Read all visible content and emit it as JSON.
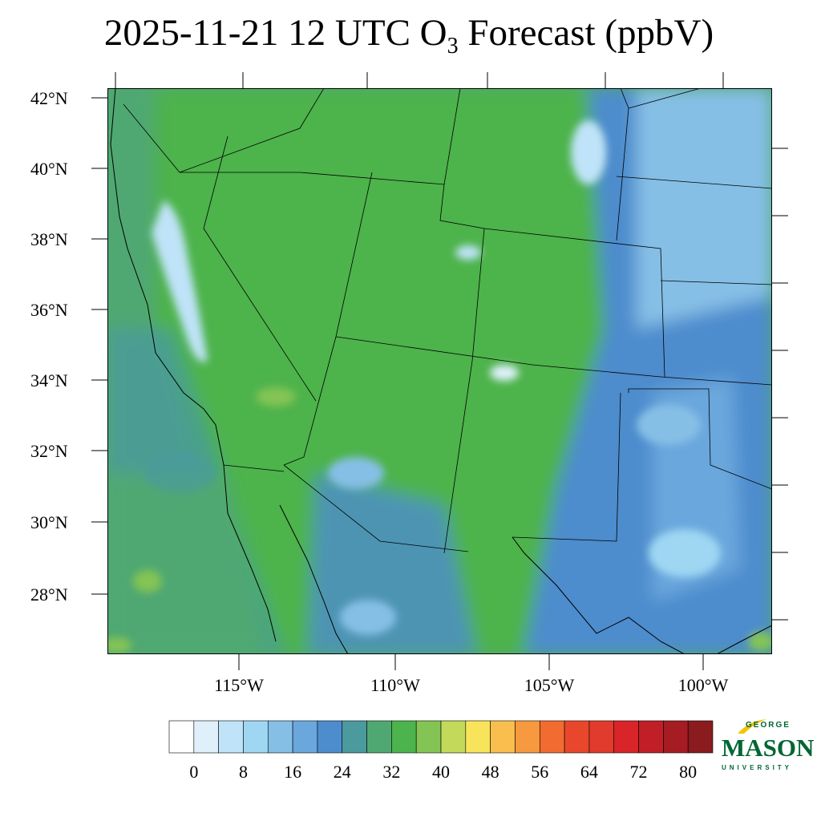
{
  "title": {
    "prefix": "2025-11-21 12 UTC O",
    "subscript": "3",
    "suffix": " Forecast (ppbV)"
  },
  "lat_labels": [
    "42°N",
    "40°N",
    "38°N",
    "36°N",
    "34°N",
    "32°N",
    "30°N",
    "28°N"
  ],
  "lon_labels": [
    "115°W",
    "110°W",
    "105°W",
    "100°W"
  ],
  "colorbar": {
    "colors": [
      "#ffffff",
      "#dff0fb",
      "#bfe3f8",
      "#9fd7f3",
      "#86bfe6",
      "#6aa7dd",
      "#4d8ccd",
      "#4a9a9e",
      "#4fa872",
      "#4db34c",
      "#84c454",
      "#c2d95a",
      "#f7e45a",
      "#f9bf4e",
      "#f7993e",
      "#f26b31",
      "#e9472b",
      "#e03b2c",
      "#d92429",
      "#c11f27",
      "#a61c23",
      "#8a1b1f"
    ],
    "tick_labels": [
      "0",
      "8",
      "16",
      "24",
      "32",
      "40",
      "48",
      "56",
      "64",
      "72",
      "80"
    ]
  },
  "logo": {
    "line1": "GEORGE",
    "line2": "MASON",
    "line3": "UNIVERSITY",
    "accent": "#f5c400",
    "brand": "#006633"
  }
}
